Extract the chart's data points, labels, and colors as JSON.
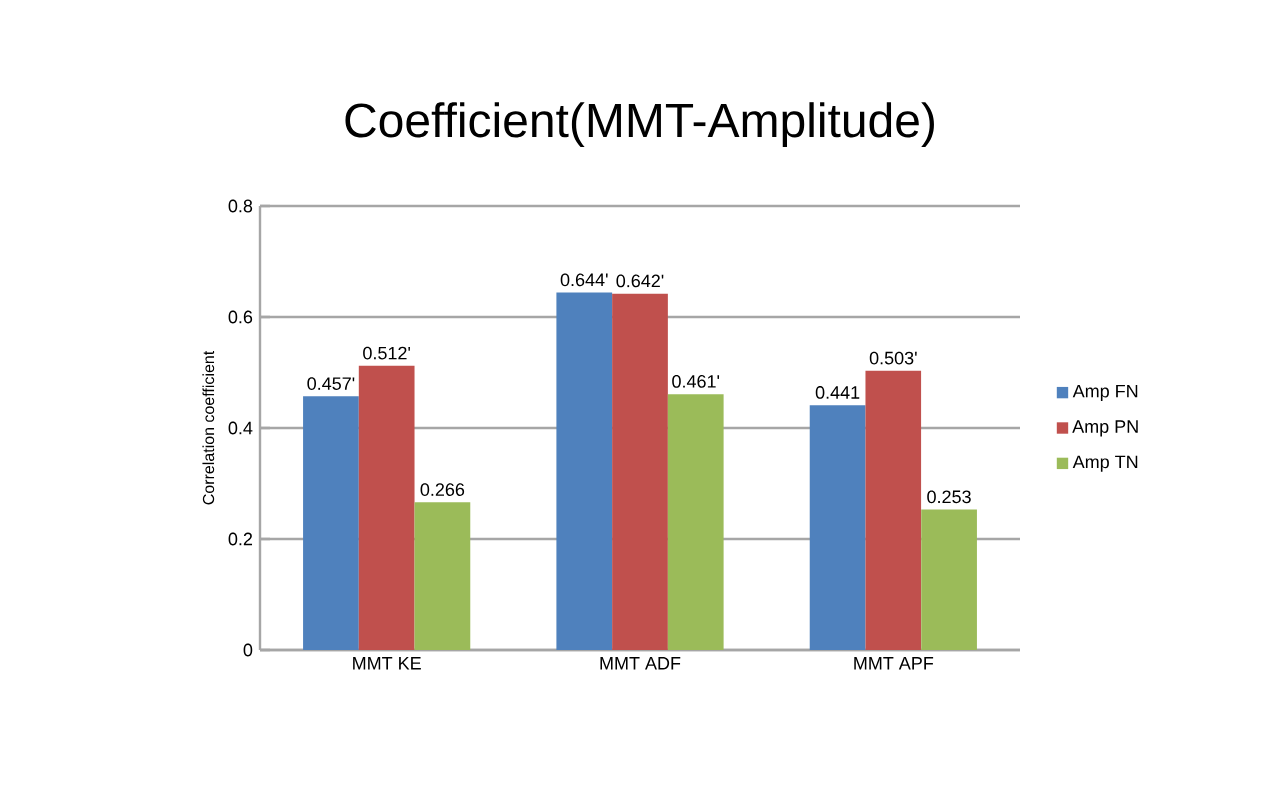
{
  "chart_data": {
    "type": "bar",
    "title": "Coefficient(MMT-Amplitude)",
    "ylabel": "Correlation coefficient",
    "categories": [
      "MMT KE",
      "MMT ADF",
      "MMT APF"
    ],
    "series": [
      {
        "name": "Amp FN",
        "color": "#4f81bd",
        "values": [
          0.457,
          0.644,
          0.441
        ],
        "value_labels": [
          "0.457'",
          "0.644'",
          "0.441"
        ]
      },
      {
        "name": "Amp PN",
        "color": "#c0504d",
        "values": [
          0.512,
          0.642,
          0.503
        ],
        "value_labels": [
          "0.512'",
          "0.642'",
          "0.503'"
        ]
      },
      {
        "name": "Amp TN",
        "color": "#9bbb59",
        "values": [
          0.266,
          0.461,
          0.253
        ],
        "value_labels": [
          "0.266",
          "0.461'",
          "0.253"
        ]
      }
    ],
    "ylim": [
      0,
      0.8
    ],
    "yticks": [
      0,
      0.2,
      0.4,
      0.6,
      0.8
    ],
    "grid": "y",
    "legend": "right"
  }
}
